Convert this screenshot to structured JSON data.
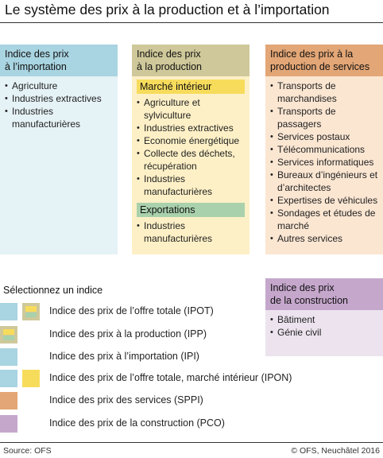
{
  "title": "Le système des prix à la production et à l’importation",
  "columns": {
    "importation": {
      "title": "Indice des prix\nà l’importation",
      "items": [
        "Agriculture",
        "Industries extractives",
        "Industries manufacturières"
      ]
    },
    "production": {
      "title": "Indice des prix\nà la production",
      "sections": [
        {
          "title": "Marché intérieur",
          "items": [
            "Agriculture et sylviculture",
            "Industries extractives",
            "Economie énergétique",
            "Collecte des déchets, récupération",
            "Industries manufacturières"
          ]
        },
        {
          "title": "Exportations",
          "items": [
            "Industries manufacturières"
          ]
        }
      ]
    },
    "services": {
      "title": "Indice des prix à la\nproduction de services",
      "items": [
        "Transports de marchandises",
        "Transports de passagers",
        "Services postaux",
        "Télécommunications",
        "Services informatiques",
        "Bureaux d’ingénieurs et d’architectes",
        "Expertises de véhicules",
        "Sondages et études de marché",
        "Autres services"
      ]
    },
    "construction": {
      "title": "Indice des prix\nde la construction",
      "items": [
        "Bâtiment",
        "Génie civil"
      ]
    }
  },
  "legend": {
    "title": "Sélectionnez un indice",
    "items": [
      "Indice des prix de l’offre totale (IPOT)",
      "Indice des prix à la production (IPP)",
      "Indice des prix à l’importation (IPI)",
      "Indice des prix de l’offre totale, marché intérieur (IPON)",
      "Indice des prix des services (SPPI)",
      "Indice des prix de la construction (PCO)"
    ]
  },
  "colors": {
    "importation": "#a9d4e1",
    "production": "#cfc89a",
    "marche_interieur": "#f7dc5c",
    "exportations": "#a9d1ac",
    "services": "#e3a676",
    "construction": "#c5a7cc"
  },
  "footer": {
    "source": "Source: OFS",
    "copyright": "© OFS, Neuchâtel 2016"
  }
}
